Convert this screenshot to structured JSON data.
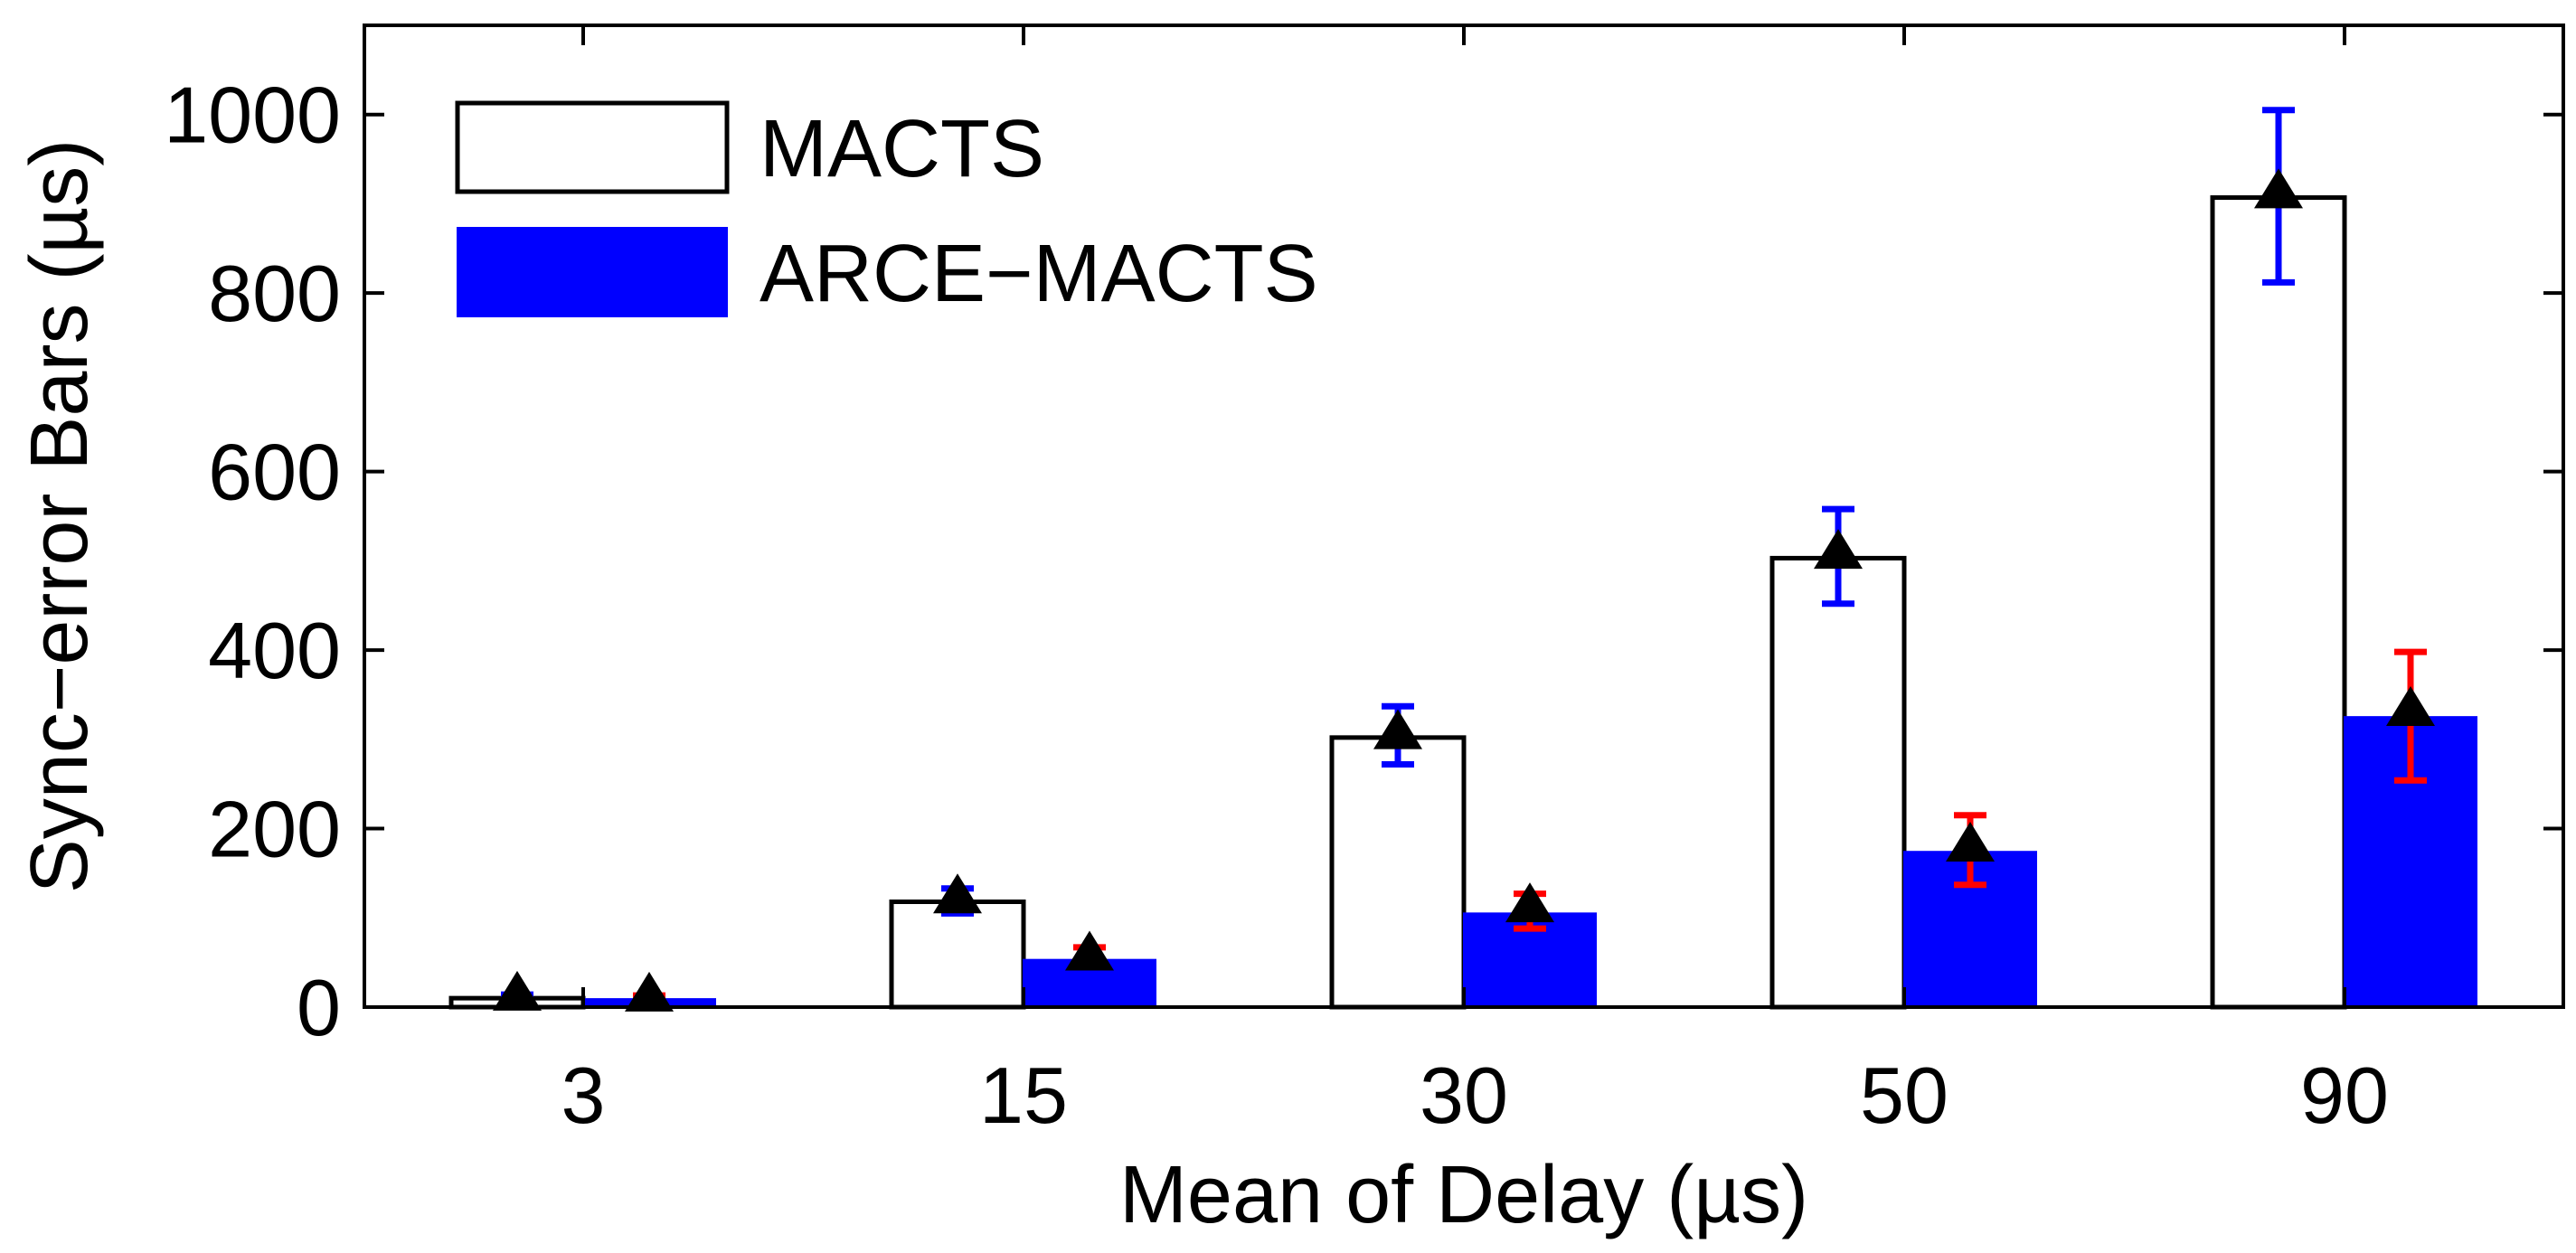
{
  "chart_data": {
    "type": "bar",
    "title": "",
    "xlabel": "Mean of Delay (µs)",
    "ylabel": "Sync−error Bars (µs)",
    "categories": [
      "3",
      "15",
      "30",
      "50",
      "90"
    ],
    "ylim": [
      0,
      1100
    ],
    "yticks": [
      0,
      200,
      400,
      600,
      800,
      1000
    ],
    "ytick_labels": [
      "0",
      "200",
      "400",
      "600",
      "800",
      "1000"
    ],
    "grid": false,
    "legend_position": "top-left",
    "series": [
      {
        "name": "MACTS",
        "color": "#ffffff",
        "edge_color": "#000000",
        "values": [
          10,
          118,
          302,
          503,
          907
        ],
        "mean_markers": [
          13,
          122,
          306,
          508,
          912
        ],
        "error_low": [
          5,
          105,
          272,
          452,
          812
        ],
        "error_high": [
          14,
          133,
          337,
          558,
          1005
        ],
        "error_color": "#0000ff"
      },
      {
        "name": "ARCE−MACTS",
        "color": "#0000ff",
        "edge_color": "#0000ff",
        "values": [
          9,
          53,
          105,
          174,
          325
        ],
        "mean_markers": [
          12,
          58,
          112,
          180,
          332
        ],
        "error_low": [
          4,
          48,
          88,
          137,
          254
        ],
        "error_high": [
          13,
          67,
          127,
          215,
          398
        ],
        "error_color": "#ff0000"
      }
    ],
    "marker": {
      "shape": "triangle",
      "color": "#000000"
    }
  }
}
